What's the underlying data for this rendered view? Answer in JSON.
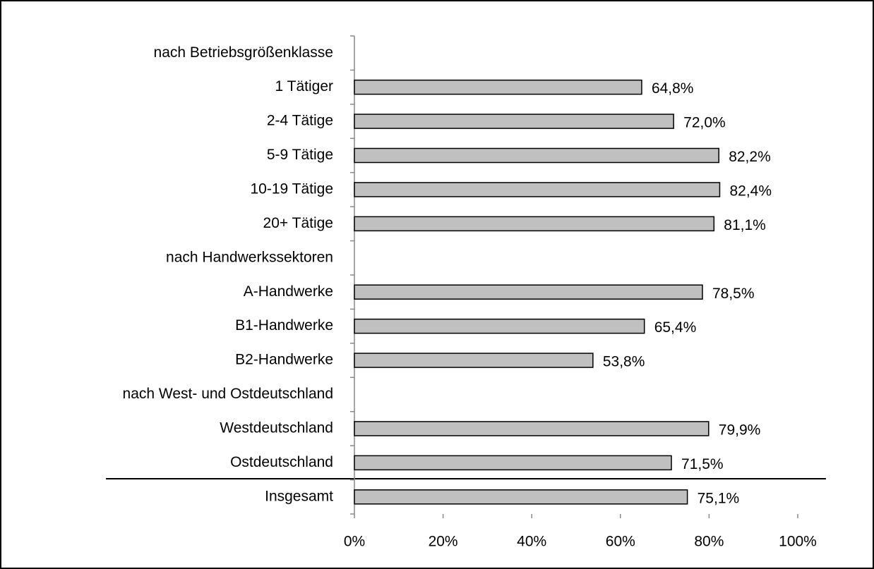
{
  "chart_data": {
    "type": "bar",
    "orientation": "horizontal",
    "categories": [
      "nach Betriebsgrößenklasse",
      "1 Tätiger",
      "2-4 Tätige",
      "5-9 Tätige",
      "10-19 Tätige",
      "20+ Tätige",
      "nach Handwerkssektoren",
      "A-Handwerke",
      "B1-Handwerke",
      "B2-Handwerke",
      "nach West- und Ostdeutschland",
      "Westdeutschland",
      "Ostdeutschland",
      "Insgesamt"
    ],
    "values": [
      null,
      64.8,
      72.0,
      82.2,
      82.4,
      81.1,
      null,
      78.5,
      65.4,
      53.8,
      null,
      79.9,
      71.5,
      75.1
    ],
    "value_labels": [
      null,
      "64,8%",
      "72,0%",
      "82,2%",
      "82,4%",
      "81,1%",
      null,
      "78,5%",
      "65,4%",
      "53,8%",
      null,
      "79,9%",
      "71,5%",
      "75,1%"
    ],
    "color": "#c0c0c0",
    "xlim": [
      0,
      100
    ],
    "xticks": [
      {
        "value": 0,
        "label": "0%"
      },
      {
        "value": 20,
        "label": "20%"
      },
      {
        "value": 40,
        "label": "40%"
      },
      {
        "value": 60,
        "label": "60%"
      },
      {
        "value": 80,
        "label": "80%"
      },
      {
        "value": 100,
        "label": "100%"
      }
    ],
    "grid": false
  }
}
